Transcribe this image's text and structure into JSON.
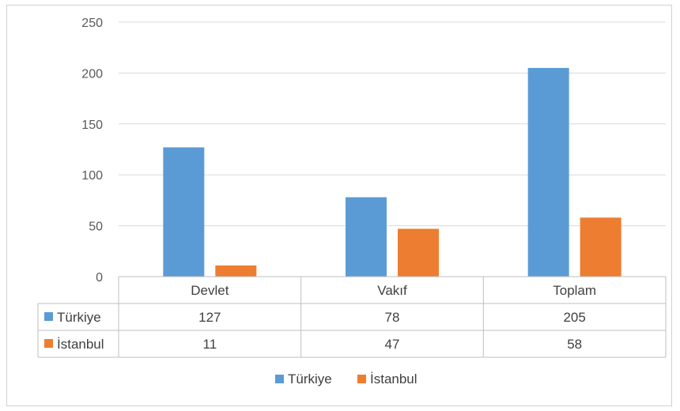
{
  "chart_data": {
    "type": "bar",
    "categories": [
      "Devlet",
      "Vakıf",
      "Toplam"
    ],
    "series": [
      {
        "name": "Türkiye",
        "values": [
          127,
          78,
          205
        ],
        "color": "#5B9BD5"
      },
      {
        "name": "İstanbul",
        "values": [
          11,
          47,
          58
        ],
        "color": "#ED7D31"
      }
    ],
    "yticks": [
      "0",
      "50",
      "100",
      "150",
      "200",
      "250"
    ],
    "ylim": [
      0,
      250
    ],
    "grid": true,
    "legend": "bottom",
    "data_table": {
      "rows": [
        {
          "label": "Türkiye",
          "cells": [
            "127",
            "78",
            "205"
          ]
        },
        {
          "label": "İstanbul",
          "cells": [
            "11",
            "47",
            "58"
          ]
        }
      ]
    },
    "title": "",
    "xlabel": "",
    "ylabel": ""
  }
}
